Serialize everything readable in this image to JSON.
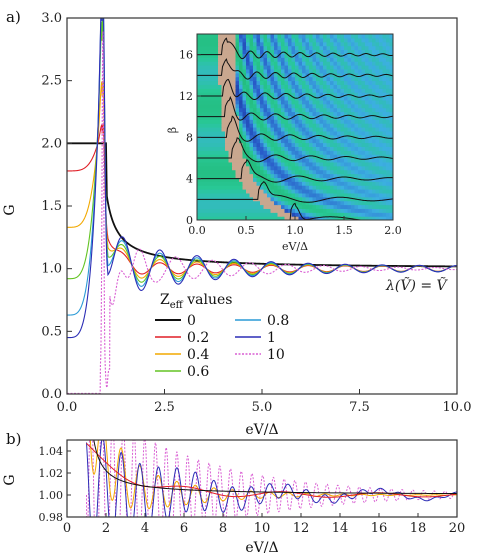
{
  "panel_labels": {
    "a": "a)",
    "b": "b)"
  },
  "legend": {
    "title": "Z",
    "title_sub": "eff",
    "title_rest": " values",
    "entries": [
      {
        "label": "0",
        "color": "#111111"
      },
      {
        "label": "0.2",
        "color": "#e01f26"
      },
      {
        "label": "0.4",
        "color": "#f2a900"
      },
      {
        "label": "0.6",
        "color": "#63c423"
      },
      {
        "label": "0.8",
        "color": "#2a9ad6"
      },
      {
        "label": "1",
        "color": "#2b2db5"
      },
      {
        "label": "10",
        "color": "#d95fd3"
      }
    ]
  },
  "annotation": "λ(Ṽ) = Ṽ",
  "chart_data": [
    {
      "id": "main",
      "type": "line",
      "xlabel": "eV/Δ",
      "ylabel": "G",
      "xlim": [
        0,
        10
      ],
      "ylim": [
        0,
        3
      ],
      "xticks": [
        "0.0",
        "2.5",
        "5.0",
        "7.5",
        "10.0"
      ],
      "yticks": [
        "0.0",
        "0.5",
        "1.0",
        "1.5",
        "2.0",
        "2.5",
        "3.0"
      ],
      "series": [
        {
          "name": "0",
          "color": "#111111",
          "z": 0
        },
        {
          "name": "0.2",
          "color": "#e01f26",
          "z": 0.2
        },
        {
          "name": "0.4",
          "color": "#f2a900",
          "z": 0.4
        },
        {
          "name": "0.6",
          "color": "#63c423",
          "z": 0.6
        },
        {
          "name": "0.8",
          "color": "#2a9ad6",
          "z": 0.8
        },
        {
          "name": "1",
          "color": "#2b2db5",
          "z": 1
        },
        {
          "name": "10",
          "color": "#d95fd3",
          "z": 10
        }
      ],
      "sample_points": {
        "x": [
          0,
          0.5,
          0.8,
          0.9,
          1.0,
          1.5,
          2.2,
          3.0,
          5.0,
          7.5,
          10.0
        ],
        "z0": [
          2.0,
          2.0,
          2.0,
          2.0,
          1.55,
          1.18,
          1.08,
          1.04,
          1.02,
          1.01,
          1.0
        ],
        "z0_2": [
          1.78,
          1.88,
          2.1,
          2.15,
          1.4,
          1.15,
          1.07,
          1.04,
          1.02,
          1.01,
          1.0
        ],
        "z1": [
          0.45,
          0.55,
          1.2,
          3.0,
          1.9,
          1.0,
          1.12,
          0.97,
          1.02,
          1.0,
          1.0
        ],
        "z10": [
          0.0,
          0.0,
          0.05,
          2.2,
          0.8,
          0.6,
          1.23,
          0.9,
          1.04,
          0.99,
          1.0
        ]
      }
    },
    {
      "id": "inset",
      "type": "heatmap",
      "xlabel": "eV/Δ",
      "ylabel": "β",
      "xlim": [
        0,
        2
      ],
      "ylim": [
        0,
        18
      ],
      "xticks": [
        "0.0",
        "0.5",
        "1.0",
        "1.5",
        "2.0"
      ],
      "yticks": [
        "0",
        "4",
        "8",
        "12",
        "16"
      ],
      "line_offsets_beta": [
        0,
        2,
        4,
        6,
        8,
        10,
        12,
        14,
        16
      ]
    },
    {
      "id": "zoom",
      "type": "line",
      "xlabel": "eV/Δ",
      "ylabel": "G",
      "xlim": [
        0,
        20
      ],
      "ylim": [
        0.98,
        1.05
      ],
      "xticks": [
        "0",
        "2",
        "4",
        "6",
        "8",
        "10",
        "12",
        "14",
        "16",
        "18",
        "20"
      ],
      "yticks": [
        "0.98",
        "1.00",
        "1.02",
        "1.04"
      ]
    }
  ]
}
